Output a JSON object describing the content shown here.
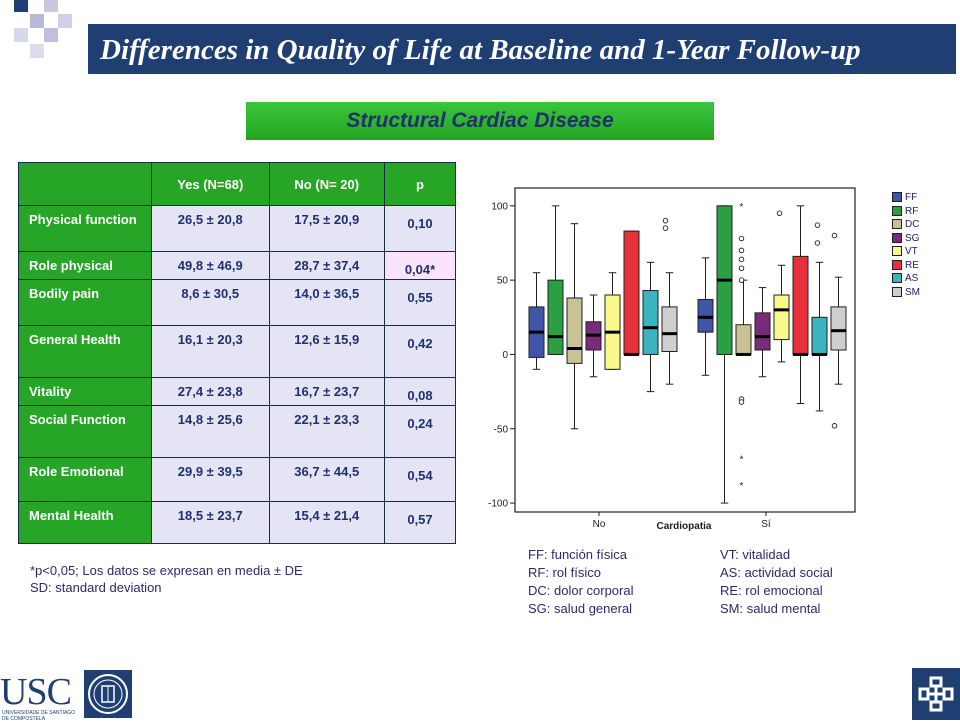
{
  "title": "Differences in Quality of Life at Baseline and 1-Year Follow-up",
  "subtitle": "Structural Cardiac Disease",
  "table": {
    "headers": [
      "",
      "Yes (N=68)",
      "No (N= 20)",
      "p"
    ],
    "rows": [
      {
        "label": "Physical function",
        "yes": "26,5 ± 20,8",
        "no": "17,5 ± 20,9",
        "p": "0,10"
      },
      {
        "label": "Role physical",
        "yes": "49,8 ± 46,9",
        "no": "28,7 ± 37,4",
        "p": "0,04*"
      },
      {
        "label": "Bodily pain",
        "yes": "8,6 ± 30,5",
        "no": "14,0 ± 36,5",
        "p": "0,55"
      },
      {
        "label": "General Health",
        "yes": "16,1 ± 20,3",
        "no": "12,6 ± 15,9",
        "p": "0,42"
      },
      {
        "label": "Vitality",
        "yes": "27,4 ± 23,8",
        "no": "16,7 ± 23,7",
        "p": "0,08"
      },
      {
        "label": "Social Function",
        "yes": "14,8 ± 25,6",
        "no": "22,1 ± 23,3",
        "p": "0,24"
      },
      {
        "label": "Role Emotional",
        "yes": "29,9 ± 39,5",
        "no": "36,7 ± 44,5",
        "p": "0,54"
      },
      {
        "label": "Mental Health",
        "yes": "18,5 ± 23,7",
        "no": "15,4 ± 21,4",
        "p": "0,57"
      }
    ]
  },
  "note_line1": "*p<0,05; Los datos se expresan en media ± DE",
  "note_line2": "SD: standard deviation",
  "abbreviations": {
    "left": [
      "FF: función física",
      "RF: rol físico",
      "DC: dolor corporal",
      "SG: salud general"
    ],
    "right": [
      "VT: vitalidad",
      "AS: actividad social",
      "RE: rol emocional",
      "SM: salud mental"
    ]
  },
  "logo_text": "USC",
  "logo_subtext": "UNIVERSIDADE DE SANTIAGO DE COMPOSTELA",
  "chart_data": {
    "type": "boxplot",
    "xlabel": "Cardiopatia",
    "categories": [
      "No",
      "Sí"
    ],
    "yticks": [
      100,
      50,
      0,
      -50,
      -100
    ],
    "ylim": [
      -106,
      112
    ],
    "series": [
      {
        "name": "FF",
        "color": "#3f55a8",
        "boxes": [
          {
            "min": -10,
            "q1": -2,
            "median": 15,
            "q3": 32,
            "max": 55,
            "outliers": []
          },
          {
            "min": -14,
            "q1": 15,
            "median": 25,
            "q3": 37,
            "max": 65,
            "outliers": []
          }
        ]
      },
      {
        "name": "RF",
        "color": "#2aa043",
        "boxes": [
          {
            "min": 0,
            "q1": 0,
            "median": 12,
            "q3": 50,
            "max": 100,
            "outliers": []
          },
          {
            "min": -100,
            "q1": 0,
            "median": 50,
            "q3": 100,
            "max": 100,
            "outliers": []
          }
        ]
      },
      {
        "name": "DC",
        "color": "#c8c294",
        "boxes": [
          {
            "min": -50,
            "q1": -6,
            "median": 4,
            "q3": 38,
            "max": 88,
            "outliers": []
          },
          {
            "min": 0,
            "q1": 0,
            "median": 0,
            "q3": 20,
            "max": 50,
            "outliers": [
              -30,
              -32,
              50,
              58,
              64,
              70,
              78
            ]
          }
        ]
      },
      {
        "name": "SG",
        "color": "#7a2a7a",
        "boxes": [
          {
            "min": -15,
            "q1": 3,
            "median": 13,
            "q3": 22,
            "max": 40,
            "outliers": []
          },
          {
            "min": -15,
            "q1": 3,
            "median": 12,
            "q3": 28,
            "max": 45,
            "outliers": []
          }
        ]
      },
      {
        "name": "VT",
        "color": "#fafa8c",
        "boxes": [
          {
            "min": -10,
            "q1": -10,
            "median": 15,
            "q3": 40,
            "max": 55,
            "outliers": []
          },
          {
            "min": -5,
            "q1": 10,
            "median": 30,
            "q3": 40,
            "max": 60,
            "outliers": [
              95
            ]
          }
        ]
      },
      {
        "name": "RE",
        "color": "#e8303a",
        "boxes": [
          {
            "min": 0,
            "q1": 0,
            "median": 0,
            "q3": 83,
            "max": 83,
            "outliers": []
          },
          {
            "min": -33,
            "q1": 0,
            "median": 0,
            "q3": 66,
            "max": 100,
            "outliers": []
          }
        ]
      },
      {
        "name": "AS",
        "color": "#3ab5bf",
        "boxes": [
          {
            "min": -25,
            "q1": 0,
            "median": 18,
            "q3": 43,
            "max": 62,
            "outliers": []
          },
          {
            "min": -38,
            "q1": 0,
            "median": 0,
            "q3": 25,
            "max": 62,
            "outliers": [
              75,
              87
            ]
          }
        ]
      },
      {
        "name": "SM",
        "color": "#cfcfcf",
        "boxes": [
          {
            "min": -20,
            "q1": 2,
            "median": 14,
            "q3": 32,
            "max": 55,
            "outliers": [
              90,
              85
            ]
          },
          {
            "min": -20,
            "q1": 3,
            "median": 16,
            "q3": 32,
            "max": 52,
            "outliers": [
              -48,
              80
            ]
          }
        ]
      }
    ],
    "extremes": [
      {
        "series": "DC",
        "group": 1,
        "values": [
          100
        ]
      },
      {
        "series": "DC",
        "group": 1,
        "values": [
          -70,
          -88
        ]
      }
    ]
  }
}
